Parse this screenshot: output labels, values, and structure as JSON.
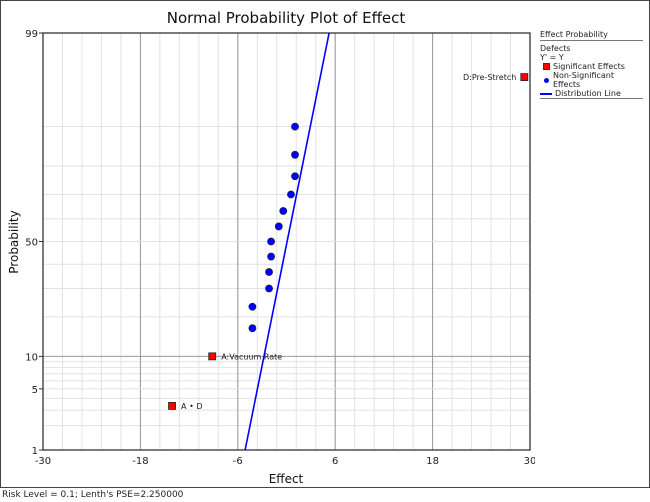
{
  "status_bar": "Risk Level = 0.1; Lenth's PSE=2.250000",
  "legend": {
    "title": "Effect Probability",
    "response": "Defects",
    "transform": "Y' = Y",
    "items": [
      {
        "label": "Significant Effects",
        "color": "#ff0000",
        "marker": "square"
      },
      {
        "label": "Non-Significant Effects",
        "color": "#0000ff",
        "marker": "circle"
      },
      {
        "label": "Distribution Line",
        "color": "#0000ff",
        "marker": "line"
      }
    ]
  },
  "chart_data": {
    "type": "scatter",
    "title": "Normal Probability Plot of Effect",
    "xlabel": "Effect",
    "ylabel": "Probability",
    "xlim": [
      -30,
      30
    ],
    "ylim": [
      1,
      99
    ],
    "y_scale": "normal-probability",
    "x_ticks": [
      -30,
      -18,
      -6,
      6,
      18,
      30
    ],
    "y_ticks": [
      1,
      5,
      10,
      50,
      99
    ],
    "grid": true,
    "legend_position": "right",
    "significant": [
      {
        "label": "A • D",
        "effect": -14.1,
        "probability": 3.33
      },
      {
        "label": "A:Vacuum Rate",
        "effect": -9.15,
        "probability": 10
      },
      {
        "label": "D:Pre-Stretch",
        "effect": 29.3,
        "probability": 96.67
      }
    ],
    "non_significant": [
      {
        "effect": -4.2,
        "probability": 16.67
      },
      {
        "effect": -4.2,
        "probability": 23.33
      },
      {
        "effect": -2.15,
        "probability": 30
      },
      {
        "effect": -2.15,
        "probability": 36.67
      },
      {
        "effect": -1.9,
        "probability": 43.33
      },
      {
        "effect": -1.9,
        "probability": 50
      },
      {
        "effect": -0.95,
        "probability": 56.67
      },
      {
        "effect": -0.4,
        "probability": 63.33
      },
      {
        "effect": 0.55,
        "probability": 70
      },
      {
        "effect": 1.05,
        "probability": 76.67
      },
      {
        "effect": 1.05,
        "probability": 83.33
      },
      {
        "effect": 1.05,
        "probability": 90
      }
    ],
    "distribution_line": [
      {
        "effect": -5.1,
        "probability": 1
      },
      {
        "effect": 5.25,
        "probability": 99
      }
    ]
  }
}
